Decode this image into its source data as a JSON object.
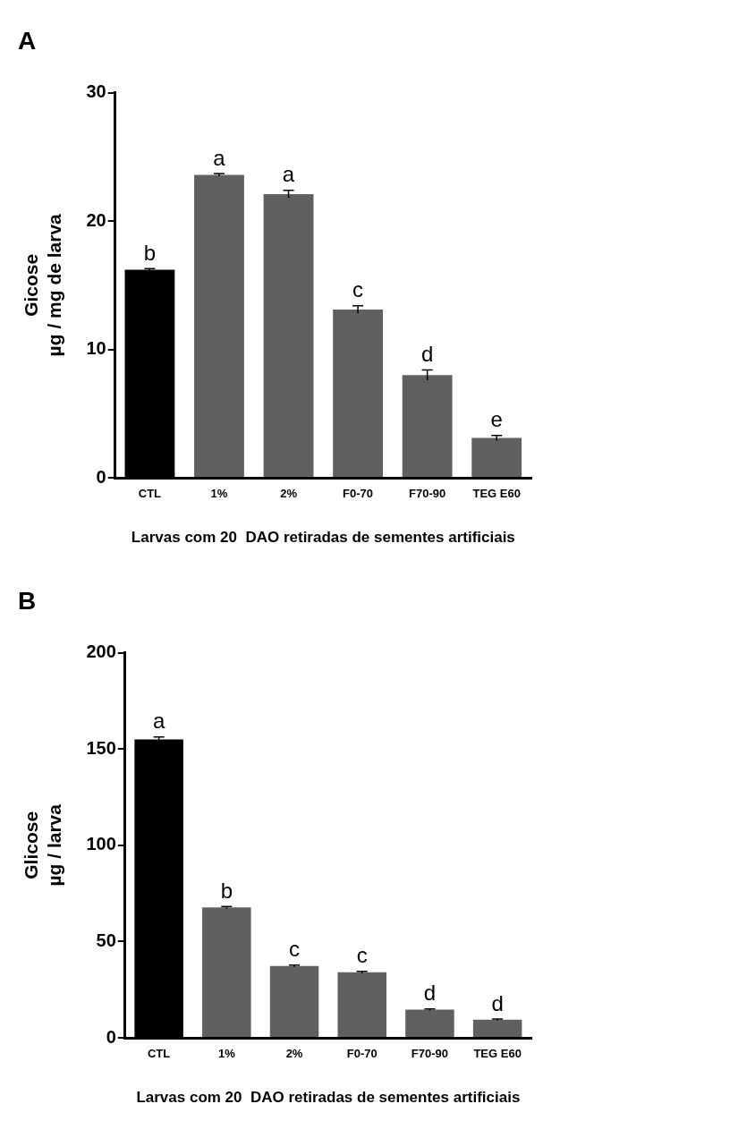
{
  "chart_data": [
    {
      "type": "bar",
      "title": "A",
      "xlabel": "Larvas com 20  DAO retiradas de sementes artificiais",
      "ylabel": "Gicose\nµg / mg de larva",
      "categories": [
        "CTL",
        "1%",
        "2%",
        "F0-70",
        "F70-90",
        "TEG E60"
      ],
      "values": [
        16.2,
        23.6,
        22.1,
        13.1,
        8.0,
        3.1
      ],
      "errors": [
        0.1,
        0.1,
        0.3,
        0.3,
        0.4,
        0.2
      ],
      "colors": [
        "#000000",
        "#606060",
        "#606060",
        "#606060",
        "#606060",
        "#606060"
      ],
      "ylim": [
        0,
        30
      ],
      "yticks": [
        0,
        10,
        20,
        30
      ],
      "grid": false,
      "legend": false,
      "annotations": [
        {
          "text": "b",
          "x": "CTL",
          "y": 16.3
        },
        {
          "text": "a",
          "x": "1%",
          "y": 23.7
        },
        {
          "text": "a",
          "x": "2%",
          "y": 22.4
        },
        {
          "text": "c",
          "x": "F0-70",
          "y": 13.4
        },
        {
          "text": "d",
          "x": "F70-90",
          "y": 8.4
        },
        {
          "text": "e",
          "x": "TEG E60",
          "y": 3.3
        }
      ]
    },
    {
      "type": "bar",
      "title": "B",
      "xlabel": "Larvas com 20  DAO retiradas de sementes artificiais",
      "ylabel": "Glicose\nµg / larva",
      "categories": [
        "CTL",
        "1%",
        "2%",
        "F0-70",
        "F70-90",
        "TEG E60"
      ],
      "values": [
        155,
        67.7,
        37.3,
        34,
        14.6,
        9.4
      ],
      "errors": [
        1.2,
        0.5,
        0.5,
        0.5,
        0.4,
        0.4
      ],
      "colors": [
        "#000000",
        "#606060",
        "#606060",
        "#606060",
        "#606060",
        "#606060"
      ],
      "ylim": [
        0,
        200
      ],
      "yticks": [
        0,
        50,
        100,
        150,
        200
      ],
      "grid": false,
      "legend": false,
      "annotations": [
        {
          "text": "a",
          "x": "CTL",
          "y": 156.2
        },
        {
          "text": "b",
          "x": "1%",
          "y": 68.2
        },
        {
          "text": "c",
          "x": "2%",
          "y": 37.8
        },
        {
          "text": "c",
          "x": "F0-70",
          "y": 34.5
        },
        {
          "text": "d",
          "x": "F70-90",
          "y": 15
        },
        {
          "text": "d",
          "x": "TEG E60",
          "y": 9.8
        }
      ]
    }
  ]
}
